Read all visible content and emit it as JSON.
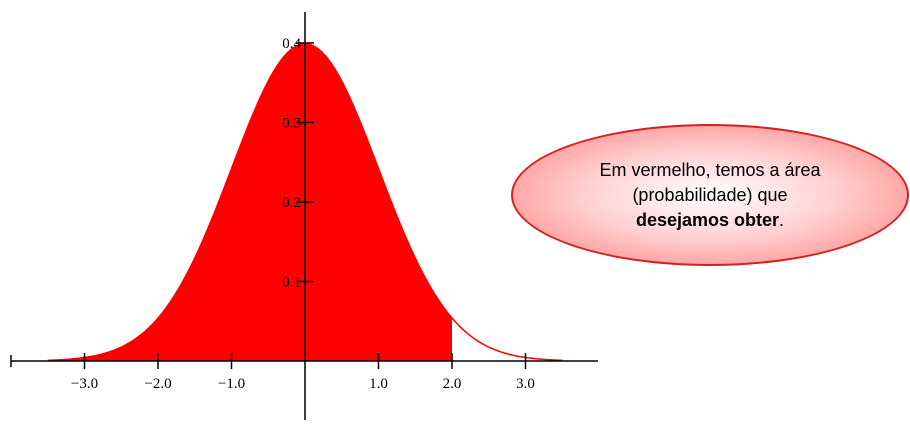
{
  "chart_data": {
    "type": "area",
    "title": "",
    "xlabel": "",
    "ylabel": "",
    "xlim": [
      -4.0,
      4.0
    ],
    "ylim": [
      0,
      0.4
    ],
    "x_ticks": [
      "−3.0",
      "−2.0",
      "−1.0",
      "1.0",
      "2.0",
      "3.0"
    ],
    "x_tick_values": [
      -3,
      -2,
      -1,
      1,
      2,
      3
    ],
    "y_ticks": [
      "0.1",
      "0.2",
      "0.3",
      "0.4"
    ],
    "y_tick_values": [
      0.1,
      0.2,
      0.3,
      0.4
    ],
    "curve": {
      "kind": "normal-pdf",
      "mean": 0,
      "sd": 1,
      "x_from": -3.5,
      "x_to": 3.5
    },
    "shaded_region": {
      "x_from": -3.5,
      "x_to": 2.0,
      "color": "#ff0000"
    },
    "line_color": "#ff0000",
    "grid": false,
    "legend": "none"
  },
  "callout": {
    "line1": "Em vermelho, temos a área",
    "line2": "(probabilidade) que",
    "bold": "desejamos obter",
    "suffix": "."
  }
}
